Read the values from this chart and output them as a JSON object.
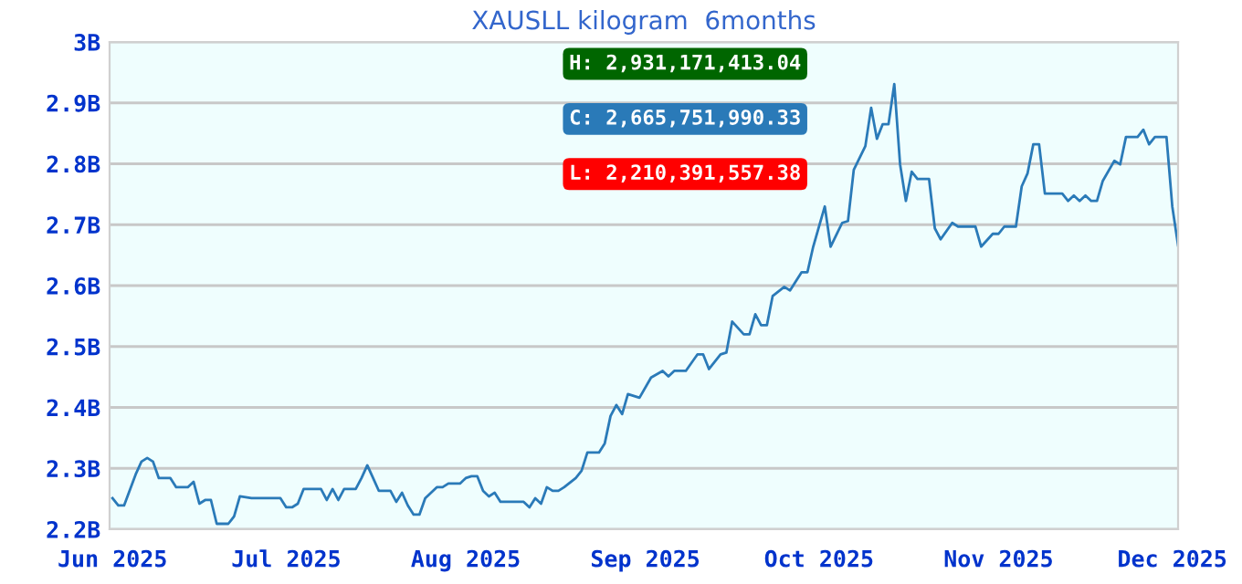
{
  "chart_data": {
    "type": "line",
    "title": "XAUSLL kilogram  6months",
    "x": [
      "2025-06-01",
      "2025-06-02",
      "2025-06-03",
      "2025-06-05",
      "2025-06-06",
      "2025-06-07",
      "2025-06-08",
      "2025-06-09",
      "2025-06-11",
      "2025-06-12",
      "2025-06-14",
      "2025-06-15",
      "2025-06-16",
      "2025-06-17",
      "2025-06-18",
      "2025-06-19",
      "2025-06-21",
      "2025-06-22",
      "2025-06-23",
      "2025-06-25",
      "2025-06-30",
      "2025-07-01",
      "2025-07-02",
      "2025-07-03",
      "2025-07-04",
      "2025-07-06",
      "2025-07-07",
      "2025-07-08",
      "2025-07-09",
      "2025-07-10",
      "2025-07-11",
      "2025-07-13",
      "2025-07-14",
      "2025-07-15",
      "2025-07-16",
      "2025-07-17",
      "2025-07-19",
      "2025-07-20",
      "2025-07-21",
      "2025-07-22",
      "2025-07-23",
      "2025-07-24",
      "2025-07-25",
      "2025-07-27",
      "2025-07-28",
      "2025-07-29",
      "2025-07-31",
      "2025-08-01",
      "2025-08-02",
      "2025-08-03",
      "2025-08-04",
      "2025-08-05",
      "2025-08-06",
      "2025-08-07",
      "2025-08-11",
      "2025-08-12",
      "2025-08-13",
      "2025-08-14",
      "2025-08-15",
      "2025-08-16",
      "2025-08-17",
      "2025-08-18",
      "2025-08-20",
      "2025-08-21",
      "2025-08-22",
      "2025-08-24",
      "2025-08-25",
      "2025-08-26",
      "2025-08-27",
      "2025-08-28",
      "2025-08-29",
      "2025-08-31",
      "2025-09-02",
      "2025-09-04",
      "2025-09-05",
      "2025-09-06",
      "2025-09-08",
      "2025-09-10",
      "2025-09-11",
      "2025-09-12",
      "2025-09-14",
      "2025-09-15",
      "2025-09-16",
      "2025-09-18",
      "2025-09-19",
      "2025-09-20",
      "2025-09-21",
      "2025-09-22",
      "2025-09-23",
      "2025-09-25",
      "2025-09-26",
      "2025-09-28",
      "2025-09-29",
      "2025-09-30",
      "2025-10-02",
      "2025-10-03",
      "2025-10-05",
      "2025-10-06",
      "2025-10-07",
      "2025-10-09",
      "2025-10-10",
      "2025-10-11",
      "2025-10-12",
      "2025-10-13",
      "2025-10-14",
      "2025-10-15",
      "2025-10-16",
      "2025-10-17",
      "2025-10-18",
      "2025-10-20",
      "2025-10-21",
      "2025-10-22",
      "2025-10-24",
      "2025-10-25",
      "2025-10-28",
      "2025-10-29",
      "2025-10-31",
      "2025-11-01",
      "2025-11-02",
      "2025-11-04",
      "2025-11-05",
      "2025-11-06",
      "2025-11-07",
      "2025-11-08",
      "2025-11-09",
      "2025-11-12",
      "2025-11-13",
      "2025-11-14",
      "2025-11-15",
      "2025-11-16",
      "2025-11-17",
      "2025-11-18",
      "2025-11-19",
      "2025-11-21",
      "2025-11-22",
      "2025-11-23",
      "2025-11-25",
      "2025-11-26",
      "2025-11-27",
      "2025-11-28",
      "2025-11-30",
      "2025-12-01",
      "2025-12-02"
    ],
    "series": [
      {
        "color": "#2a7ab8",
        "values": [
          2.251,
          2.239,
          2.239,
          2.29,
          2.311,
          2.317,
          2.311,
          2.284,
          2.284,
          2.269,
          2.269,
          2.278,
          2.242,
          2.248,
          2.248,
          2.209,
          2.209,
          2.221,
          2.254,
          2.251,
          2.251,
          2.236,
          2.236,
          2.242,
          2.266,
          2.266,
          2.266,
          2.248,
          2.266,
          2.248,
          2.266,
          2.266,
          2.284,
          2.305,
          2.284,
          2.263,
          2.263,
          2.245,
          2.26,
          2.239,
          2.224,
          2.224,
          2.251,
          2.269,
          2.269,
          2.275,
          2.275,
          2.284,
          2.287,
          2.287,
          2.263,
          2.254,
          2.26,
          2.245,
          2.245,
          2.236,
          2.251,
          2.242,
          2.269,
          2.263,
          2.263,
          2.269,
          2.284,
          2.296,
          2.326,
          2.326,
          2.341,
          2.386,
          2.404,
          2.389,
          2.422,
          2.416,
          2.449,
          2.46,
          2.451,
          2.46,
          2.46,
          2.487,
          2.487,
          2.463,
          2.487,
          2.49,
          2.541,
          2.52,
          2.52,
          2.553,
          2.535,
          2.535,
          2.583,
          2.598,
          2.592,
          2.622,
          2.622,
          2.664,
          2.73,
          2.664,
          2.703,
          2.706,
          2.79,
          2.829,
          2.892,
          2.841,
          2.865,
          2.865,
          2.931,
          2.799,
          2.739,
          2.787,
          2.775,
          2.775,
          2.694,
          2.676,
          2.703,
          2.697,
          2.697,
          2.664,
          2.685,
          2.685,
          2.697,
          2.697,
          2.763,
          2.784,
          2.832,
          2.832,
          2.751,
          2.751,
          2.739,
          2.748,
          2.739,
          2.748,
          2.739,
          2.739,
          2.772,
          2.805,
          2.799,
          2.844,
          2.844,
          2.856,
          2.832,
          2.844,
          2.844,
          2.73,
          2.666
        ]
      }
    ],
    "xlim": [
      "2025-05-31T12:00",
      "2025-12-02"
    ],
    "xticks": [
      {
        "value": "2025-06-01",
        "label": "Jun 2025"
      },
      {
        "value": "2025-07-01",
        "label": "Jul 2025"
      },
      {
        "value": "2025-08-01",
        "label": "Aug 2025"
      },
      {
        "value": "2025-09-01",
        "label": "Sep 2025"
      },
      {
        "value": "2025-10-01",
        "label": "Oct 2025"
      },
      {
        "value": "2025-11-01",
        "label": "Nov 2025"
      },
      {
        "value": "2025-12-01",
        "label": "Dec 2025"
      }
    ],
    "ylim": [
      2.2,
      3.0
    ],
    "yticks": [
      {
        "value": 2.2,
        "label": "2.2B"
      },
      {
        "value": 2.3,
        "label": "2.3B"
      },
      {
        "value": 2.4,
        "label": "2.4B"
      },
      {
        "value": 2.5,
        "label": "2.5B"
      },
      {
        "value": 2.6,
        "label": "2.6B"
      },
      {
        "value": 2.7,
        "label": "2.7B"
      },
      {
        "value": 2.8,
        "label": "2.8B"
      },
      {
        "value": 2.9,
        "label": "2.9B"
      },
      {
        "value": 3.0,
        "label": "3B"
      }
    ],
    "grid": "y",
    "legend": false,
    "annotations": [
      "H: 2,931,171,413.04",
      "C: 2,665,751,990.33",
      "L: 2,210,391,557.38"
    ]
  }
}
